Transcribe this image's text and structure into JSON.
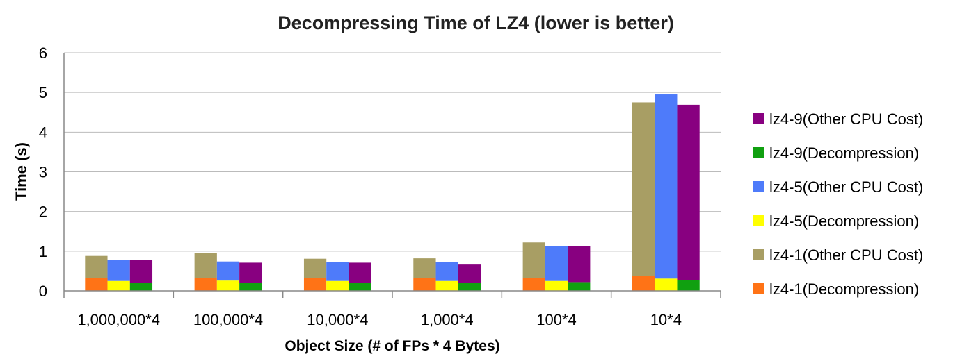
{
  "chart_data": {
    "type": "bar",
    "stacked_groups": true,
    "title": "Decompressing Time of LZ4 (lower is better)",
    "xlabel": "Object Size (# of FPs * 4 Bytes)",
    "ylabel": "Time (s)",
    "ylim": [
      0,
      6
    ],
    "yticks": [
      "0",
      "1",
      "2",
      "3",
      "4",
      "5",
      "6"
    ],
    "categories": [
      "1,000,000*4",
      "100,000*4",
      "10,000*4",
      "1,000*4",
      "100*4",
      "10*4"
    ],
    "series": [
      {
        "name": "lz4-1(Decompression)",
        "stack": "lz4-1",
        "color": "#FF7316",
        "values": [
          0.32,
          0.32,
          0.33,
          0.32,
          0.33,
          0.37
        ]
      },
      {
        "name": "lz4-1(Other CPU Cost)",
        "stack": "lz4-1",
        "color": "#A89E64",
        "values": [
          0.56,
          0.63,
          0.48,
          0.5,
          0.89,
          4.38
        ]
      },
      {
        "name": "lz4-5(Decompression)",
        "stack": "lz4-5",
        "color": "#FFFF00",
        "values": [
          0.25,
          0.26,
          0.25,
          0.25,
          0.25,
          0.31
        ]
      },
      {
        "name": "lz4-5(Other CPU Cost)",
        "stack": "lz4-5",
        "color": "#4E7BFA",
        "values": [
          0.53,
          0.48,
          0.47,
          0.47,
          0.87,
          4.64
        ]
      },
      {
        "name": "lz4-9(Decompression)",
        "stack": "lz4-9",
        "color": "#10A010",
        "values": [
          0.2,
          0.21,
          0.21,
          0.21,
          0.22,
          0.27
        ]
      },
      {
        "name": "lz4-9(Other CPU Cost)",
        "stack": "lz4-9",
        "color": "#880080",
        "values": [
          0.58,
          0.5,
          0.5,
          0.47,
          0.91,
          4.42
        ]
      }
    ],
    "legend_order": [
      "lz4-9(Other CPU Cost)",
      "lz4-9(Decompression)",
      "lz4-5(Other CPU Cost)",
      "lz4-5(Decompression)",
      "lz4-1(Other CPU Cost)",
      "lz4-1(Decompression)"
    ],
    "legend_position": "right",
    "grid": true
  },
  "colors": {
    "grid": "#BBBBBB",
    "axis": "#888888",
    "text": "#000000"
  }
}
